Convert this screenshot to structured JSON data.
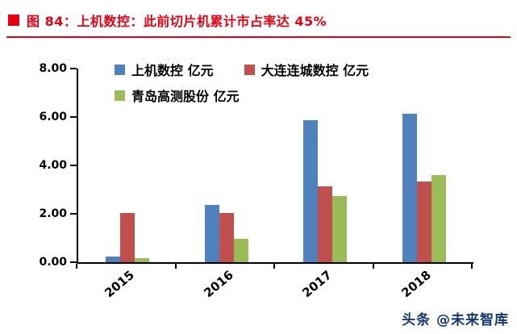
{
  "header": {
    "title": "图 84：上机数控：此前切片机累计市占率达 45%",
    "accent_color": "#e60012"
  },
  "chart_data": {
    "type": "bar",
    "categories": [
      "2015",
      "2016",
      "2017",
      "2018"
    ],
    "series": [
      {
        "name": "上机数控 亿元",
        "color": "#4f81bd",
        "values": [
          0.25,
          2.38,
          5.88,
          6.15
        ]
      },
      {
        "name": "大连连城数控 亿元",
        "color": "#c0504d",
        "values": [
          2.05,
          2.05,
          3.15,
          3.35
        ]
      },
      {
        "name": "青岛高测股份 亿元",
        "color": "#9bbb59",
        "values": [
          0.18,
          0.98,
          2.75,
          3.6
        ]
      }
    ],
    "title": "",
    "xlabel": "",
    "ylabel": "",
    "ylim": [
      0,
      8
    ],
    "yticks": [
      0,
      2,
      4,
      6,
      8
    ],
    "ytick_labels": [
      "0.00",
      "2.00",
      "4.00",
      "6.00",
      "8.00"
    ],
    "grid": false,
    "legend_position": "top-inside"
  },
  "watermark": {
    "text": "头条 @未来智库"
  }
}
